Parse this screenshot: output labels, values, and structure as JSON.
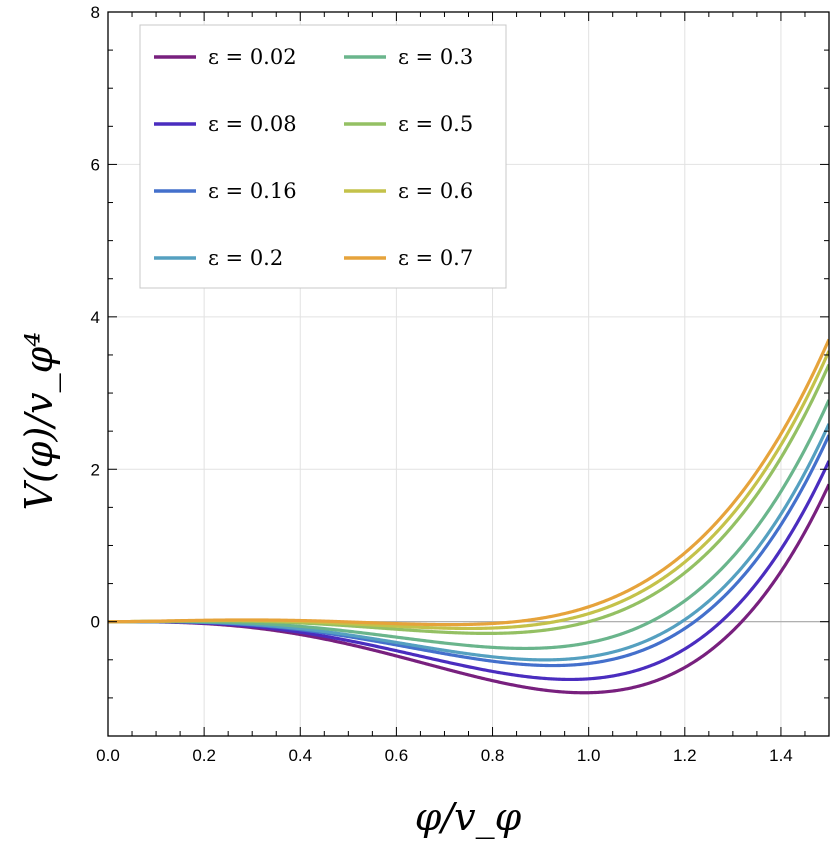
{
  "chart_data": {
    "type": "line",
    "title": "",
    "xlabel": "φ/v_φ",
    "ylabel": "V(φ)/v_φ⁴",
    "xlim": [
      0.0,
      1.5
    ],
    "ylim": [
      -1.5,
      8.0
    ],
    "x_ticks": [
      0.0,
      0.2,
      0.4,
      0.6,
      0.8,
      1.0,
      1.2,
      1.4
    ],
    "x_tick_labels": [
      "0.0",
      "0.2",
      "0.4",
      "0.6",
      "0.8",
      "1.0",
      "1.2",
      "1.4"
    ],
    "y_ticks": [
      0,
      2,
      4,
      6,
      8
    ],
    "y_tick_labels": [
      "0",
      "2",
      "4",
      "6",
      "8"
    ],
    "grid": true,
    "legend_position": "top-left",
    "legend_columns": 2,
    "reference_line_y": 0,
    "series": [
      {
        "name": "ε = 0.02",
        "epsilon": 0.02,
        "color": "#78207e"
      },
      {
        "name": "ε = 0.08",
        "epsilon": 0.08,
        "color": "#4a2dbf"
      },
      {
        "name": "ε = 0.16",
        "epsilon": 0.16,
        "color": "#4470cc"
      },
      {
        "name": "ε = 0.2",
        "epsilon": 0.2,
        "color": "#55a0c0"
      },
      {
        "name": "ε = 0.3",
        "epsilon": 0.3,
        "color": "#6ab58c"
      },
      {
        "name": "ε = 0.5",
        "epsilon": 0.5,
        "color": "#94c063"
      },
      {
        "name": "ε = 0.6",
        "epsilon": 0.6,
        "color": "#c4c24a"
      },
      {
        "name": "ε = 0.7",
        "epsilon": 0.7,
        "color": "#e6a33b"
      }
    ]
  }
}
